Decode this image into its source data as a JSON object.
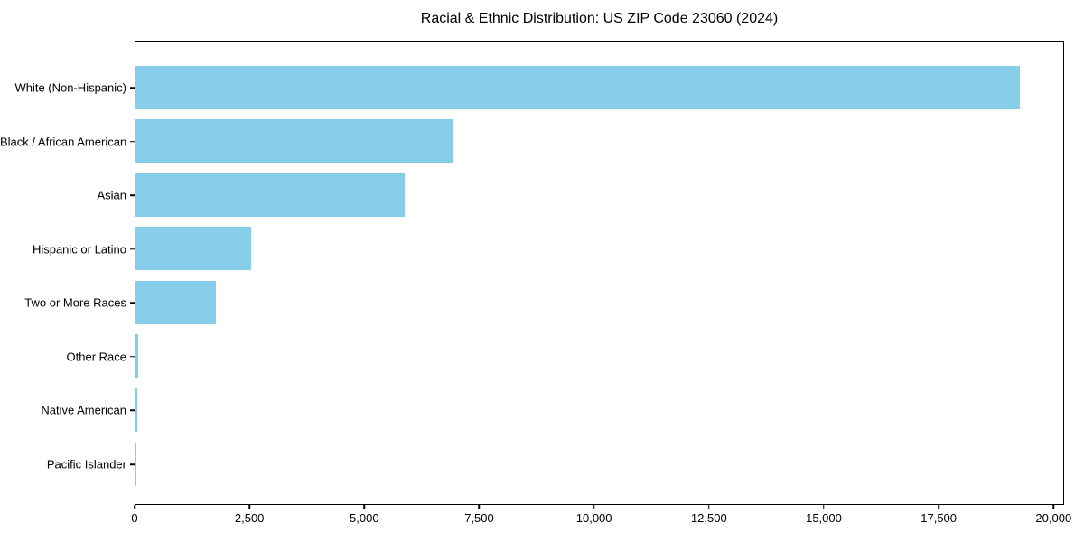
{
  "chart_data": {
    "type": "bar",
    "orientation": "horizontal",
    "title": "Racial & Ethnic Distribution: US ZIP Code 23060 (2024)",
    "categories": [
      "White (Non-Hispanic)",
      "Black / African American",
      "Asian",
      "Hispanic or Latino",
      "Two or More Races",
      "Other Race",
      "Native American",
      "Pacific Islander"
    ],
    "values": [
      19250,
      6900,
      5860,
      2520,
      1750,
      60,
      40,
      10
    ],
    "xlabel": "",
    "ylabel": "",
    "xlim": [
      0,
      20230
    ],
    "x_ticks": [
      0,
      2500,
      5000,
      7500,
      10000,
      12500,
      15000,
      17500,
      20000
    ],
    "x_tick_labels": [
      "0",
      "2,500",
      "5,000",
      "7,500",
      "10,000",
      "12,500",
      "15,000",
      "17,500",
      "20,000"
    ],
    "bar_color": "#87CEEB",
    "background_color": "#ffffff",
    "text_color": "#000000",
    "grid": false,
    "legend": null
  }
}
